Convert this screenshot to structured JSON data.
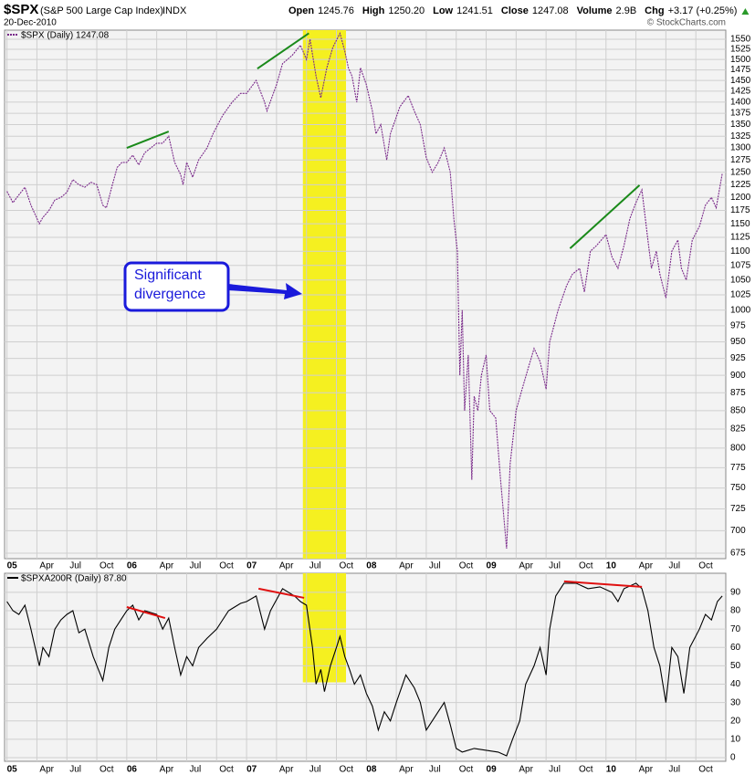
{
  "header": {
    "symbol": "$SPX",
    "description": "(S&P 500 Large Cap Index)",
    "exchange": "INDX",
    "date": "20-Dec-2010",
    "quote": [
      {
        "label": "Open",
        "value": "1245.76"
      },
      {
        "label": "High",
        "value": "1250.20"
      },
      {
        "label": "Low",
        "value": "1241.51"
      },
      {
        "label": "Close",
        "value": "1247.08"
      },
      {
        "label": "Volume",
        "value": "2.9B"
      },
      {
        "label": "Chg",
        "value": "+3.17 (+0.25%)"
      }
    ],
    "credit": "© StockCharts.com"
  },
  "chart_data": [
    {
      "type": "line",
      "log": true,
      "grid": true,
      "x": [
        2005.0,
        2005.05,
        2005.1,
        2005.15,
        2005.2,
        2005.27,
        2005.3,
        2005.35,
        2005.4,
        2005.45,
        2005.5,
        2005.55,
        2005.6,
        2005.65,
        2005.7,
        2005.75,
        2005.8,
        2005.83,
        2005.88,
        2005.92,
        2005.96,
        2006.0,
        2006.05,
        2006.1,
        2006.15,
        2006.2,
        2006.25,
        2006.3,
        2006.35,
        2006.4,
        2006.45,
        2006.47,
        2006.5,
        2006.55,
        2006.6,
        2006.67,
        2006.72,
        2006.8,
        2006.88,
        2006.95,
        2007.0,
        2007.08,
        2007.15,
        2007.17,
        2007.25,
        2007.3,
        2007.38,
        2007.45,
        2007.5,
        2007.53,
        2007.58,
        2007.62,
        2007.67,
        2007.72,
        2007.78,
        2007.82,
        2007.85,
        2007.88,
        2007.92,
        2007.95,
        2008.0,
        2008.05,
        2008.08,
        2008.12,
        2008.17,
        2008.2,
        2008.28,
        2008.35,
        2008.4,
        2008.45,
        2008.5,
        2008.55,
        2008.6,
        2008.65,
        2008.7,
        2008.73,
        2008.76,
        2008.78,
        2008.8,
        2008.82,
        2008.85,
        2008.88,
        2008.9,
        2008.93,
        2008.96,
        2009.0,
        2009.03,
        2009.08,
        2009.12,
        2009.17,
        2009.2,
        2009.25,
        2009.3,
        2009.35,
        2009.4,
        2009.45,
        2009.5,
        2009.53,
        2009.6,
        2009.67,
        2009.72,
        2009.78,
        2009.82,
        2009.87,
        2009.92,
        2010.0,
        2010.05,
        2010.1,
        2010.15,
        2010.2,
        2010.25,
        2010.3,
        2010.35,
        2010.38,
        2010.42,
        2010.45,
        2010.5,
        2010.55,
        2010.6,
        2010.63,
        2010.67,
        2010.72,
        2010.78,
        2010.83,
        2010.88,
        2010.92,
        2010.97
      ],
      "series": [
        {
          "name": "$SPX (Daily) 1247.08",
          "color": "#7a2a8a",
          "values": [
            1212,
            1190,
            1205,
            1220,
            1185,
            1150,
            1162,
            1175,
            1195,
            1200,
            1210,
            1235,
            1225,
            1220,
            1230,
            1225,
            1185,
            1180,
            1225,
            1260,
            1270,
            1270,
            1285,
            1265,
            1290,
            1300,
            1310,
            1310,
            1325,
            1270,
            1245,
            1225,
            1270,
            1240,
            1275,
            1300,
            1330,
            1370,
            1400,
            1420,
            1420,
            1450,
            1400,
            1380,
            1440,
            1490,
            1510,
            1535,
            1500,
            1550,
            1460,
            1410,
            1480,
            1530,
            1565,
            1520,
            1480,
            1460,
            1400,
            1480,
            1440,
            1380,
            1330,
            1350,
            1275,
            1330,
            1390,
            1415,
            1380,
            1350,
            1280,
            1250,
            1270,
            1300,
            1250,
            1160,
            1100,
            900,
            1000,
            850,
            930,
            760,
            870,
            850,
            900,
            930,
            850,
            840,
            760,
            680,
            780,
            850,
            880,
            910,
            940,
            920,
            880,
            950,
            1000,
            1040,
            1060,
            1070,
            1030,
            1100,
            1110,
            1130,
            1090,
            1070,
            1110,
            1160,
            1190,
            1215,
            1120,
            1070,
            1100,
            1060,
            1020,
            1100,
            1120,
            1070,
            1050,
            1120,
            1145,
            1185,
            1200,
            1180,
            1247
          ]
        }
      ],
      "xlim": [
        2004.98,
        2011.0
      ],
      "xticks": [
        {
          "value": 2005,
          "label": "05"
        },
        {
          "value": 2005.25,
          "label": "Apr"
        },
        {
          "value": 2005.5,
          "label": "Jul"
        },
        {
          "value": 2005.75,
          "label": "Oct"
        },
        {
          "value": 2006,
          "label": "06"
        },
        {
          "value": 2006.25,
          "label": "Apr"
        },
        {
          "value": 2006.5,
          "label": "Jul"
        },
        {
          "value": 2006.75,
          "label": "Oct"
        },
        {
          "value": 2007,
          "label": "07"
        },
        {
          "value": 2007.25,
          "label": "Apr"
        },
        {
          "value": 2007.5,
          "label": "Jul"
        },
        {
          "value": 2007.75,
          "label": "Oct"
        },
        {
          "value": 2008,
          "label": "08"
        },
        {
          "value": 2008.25,
          "label": "Apr"
        },
        {
          "value": 2008.5,
          "label": "Jul"
        },
        {
          "value": 2008.75,
          "label": "Oct"
        },
        {
          "value": 2009,
          "label": "09"
        },
        {
          "value": 2009.25,
          "label": "Apr"
        },
        {
          "value": 2009.5,
          "label": "Jul"
        },
        {
          "value": 2009.75,
          "label": "Oct"
        },
        {
          "value": 2010,
          "label": "10"
        },
        {
          "value": 2010.25,
          "label": "Apr"
        },
        {
          "value": 2010.5,
          "label": "Jul"
        },
        {
          "value": 2010.75,
          "label": "Oct"
        }
      ],
      "ylim": [
        669,
        1573
      ],
      "yticks": [
        675,
        700,
        725,
        750,
        775,
        800,
        825,
        850,
        875,
        900,
        925,
        950,
        975,
        1000,
        1025,
        1050,
        1075,
        1100,
        1125,
        1150,
        1175,
        1200,
        1225,
        1250,
        1275,
        1300,
        1325,
        1350,
        1375,
        1400,
        1425,
        1450,
        1475,
        1500,
        1525,
        1550
      ],
      "highlight": {
        "x": [
          2007.47,
          2007.83
        ],
        "color": "#f5f020"
      },
      "trendlines": [
        {
          "x": [
            2006.0,
            2006.35
          ],
          "values": [
            1300,
            1335
          ],
          "color": "#1a8a1a"
        },
        {
          "x": [
            2007.09,
            2007.52
          ],
          "values": [
            1478,
            1565
          ],
          "color": "#1a8a1a"
        },
        {
          "x": [
            2009.7,
            2010.28
          ],
          "values": [
            1105,
            1224
          ],
          "color": "#1a8a1a"
        }
      ],
      "annotation": {
        "lines": [
          "Significant",
          "divergence"
        ],
        "color": "#1a1adb"
      }
    },
    {
      "type": "line",
      "log": false,
      "grid": true,
      "x": [
        2005.0,
        2005.05,
        2005.1,
        2005.15,
        2005.2,
        2005.27,
        2005.3,
        2005.35,
        2005.4,
        2005.45,
        2005.5,
        2005.55,
        2005.6,
        2005.65,
        2005.72,
        2005.8,
        2005.85,
        2005.9,
        2005.95,
        2006.0,
        2006.05,
        2006.1,
        2006.15,
        2006.25,
        2006.3,
        2006.35,
        2006.4,
        2006.45,
        2006.5,
        2006.55,
        2006.6,
        2006.67,
        2006.75,
        2006.85,
        2006.95,
        2007.0,
        2007.08,
        2007.15,
        2007.2,
        2007.3,
        2007.4,
        2007.45,
        2007.5,
        2007.55,
        2007.58,
        2007.62,
        2007.65,
        2007.7,
        2007.75,
        2007.78,
        2007.82,
        2007.86,
        2007.9,
        2007.95,
        2008.0,
        2008.05,
        2008.1,
        2008.15,
        2008.2,
        2008.25,
        2008.33,
        2008.4,
        2008.45,
        2008.5,
        2008.55,
        2008.6,
        2008.65,
        2008.7,
        2008.75,
        2008.8,
        2008.9,
        2009.0,
        2009.1,
        2009.17,
        2009.22,
        2009.28,
        2009.33,
        2009.4,
        2009.45,
        2009.5,
        2009.53,
        2009.58,
        2009.65,
        2009.75,
        2009.85,
        2009.95,
        2010.05,
        2010.1,
        2010.15,
        2010.25,
        2010.3,
        2010.35,
        2010.4,
        2010.45,
        2010.5,
        2010.55,
        2010.6,
        2010.65,
        2010.7,
        2010.78,
        2010.83,
        2010.88,
        2010.93,
        2010.97
      ],
      "series": [
        {
          "name": "$SPXA200R (Daily) 87.80",
          "color": "#000000",
          "values": [
            85,
            80,
            78,
            83,
            70,
            50,
            60,
            55,
            70,
            75,
            78,
            80,
            68,
            70,
            55,
            42,
            60,
            70,
            75,
            80,
            83,
            75,
            80,
            78,
            70,
            76,
            60,
            45,
            55,
            50,
            60,
            65,
            70,
            80,
            84,
            85,
            88,
            70,
            80,
            92,
            88,
            85,
            83,
            60,
            40,
            48,
            36,
            50,
            60,
            66,
            55,
            48,
            40,
            45,
            35,
            28,
            15,
            25,
            20,
            30,
            45,
            38,
            30,
            15,
            20,
            25,
            30,
            18,
            5,
            3,
            5,
            4,
            3,
            1,
            10,
            20,
            40,
            50,
            60,
            45,
            70,
            88,
            95,
            95,
            92,
            93,
            90,
            85,
            92,
            95,
            92,
            80,
            60,
            50,
            30,
            60,
            55,
            35,
            60,
            70,
            78,
            75,
            85,
            88
          ]
        }
      ],
      "xlim": [
        2004.98,
        2011.0
      ],
      "xticks": [
        {
          "value": 2005,
          "label": "05"
        },
        {
          "value": 2005.25,
          "label": "Apr"
        },
        {
          "value": 2005.5,
          "label": "Jul"
        },
        {
          "value": 2005.75,
          "label": "Oct"
        },
        {
          "value": 2006,
          "label": "06"
        },
        {
          "value": 2006.25,
          "label": "Apr"
        },
        {
          "value": 2006.5,
          "label": "Jul"
        },
        {
          "value": 2006.75,
          "label": "Oct"
        },
        {
          "value": 2007,
          "label": "07"
        },
        {
          "value": 2007.25,
          "label": "Apr"
        },
        {
          "value": 2007.5,
          "label": "Jul"
        },
        {
          "value": 2007.75,
          "label": "Oct"
        },
        {
          "value": 2008,
          "label": "08"
        },
        {
          "value": 2008.25,
          "label": "Apr"
        },
        {
          "value": 2008.5,
          "label": "Jul"
        },
        {
          "value": 2008.75,
          "label": "Oct"
        },
        {
          "value": 2009,
          "label": "09"
        },
        {
          "value": 2009.25,
          "label": "Apr"
        },
        {
          "value": 2009.5,
          "label": "Jul"
        },
        {
          "value": 2009.75,
          "label": "Oct"
        },
        {
          "value": 2010,
          "label": "10"
        },
        {
          "value": 2010.25,
          "label": "Apr"
        },
        {
          "value": 2010.5,
          "label": "Jul"
        },
        {
          "value": 2010.75,
          "label": "Oct"
        }
      ],
      "ylim": [
        -2,
        100.4
      ],
      "yticks": [
        0,
        10,
        20,
        30,
        40,
        50,
        60,
        70,
        80,
        90
      ],
      "highlight": {
        "x": [
          2007.47,
          2007.83
        ],
        "y_from": 41,
        "color": "#f5f020"
      },
      "trendlines": [
        {
          "x": [
            2006.0,
            2006.32
          ],
          "values": [
            82,
            76
          ],
          "color": "#e01010"
        },
        {
          "x": [
            2007.1,
            2007.48
          ],
          "values": [
            92,
            87
          ],
          "color": "#e01010"
        },
        {
          "x": [
            2009.65,
            2010.3
          ],
          "values": [
            96,
            93
          ],
          "color": "#e01010"
        }
      ]
    }
  ]
}
